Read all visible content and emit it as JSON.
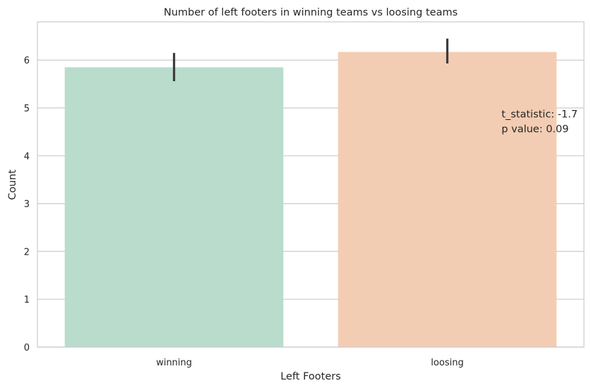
{
  "chart_data": {
    "type": "bar",
    "title": "Number of left footers in winning teams vs loosing teams",
    "xlabel": "Left Footers",
    "ylabel": "Count",
    "categories": [
      "winning",
      "loosing"
    ],
    "values": [
      5.85,
      6.17
    ],
    "error_low": [
      5.56,
      5.93
    ],
    "error_high": [
      6.15,
      6.45
    ],
    "colors": [
      "#b9dccc",
      "#f3cdb3"
    ],
    "ylim": [
      0,
      6.8
    ],
    "yticks": [
      0,
      1,
      2,
      3,
      4,
      5,
      6
    ],
    "grid": true,
    "annotation": [
      "t_statistic: -1.7",
      "p value: 0.09"
    ],
    "annotation_at": [
      "loosing",
      4.8
    ]
  }
}
